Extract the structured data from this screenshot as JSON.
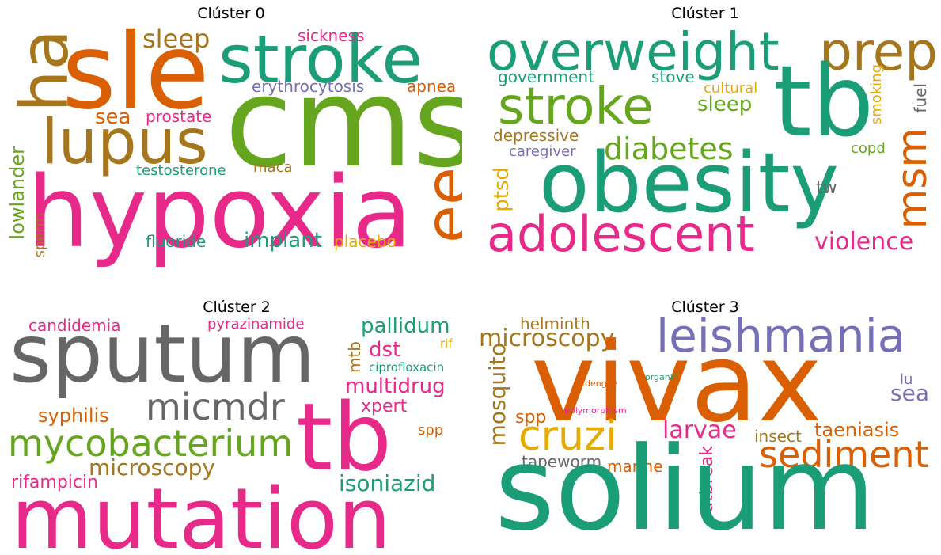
{
  "palette": {
    "green": "#1b9e77",
    "orange": "#d95f02",
    "purple": "#7570b3",
    "pink": "#e7298a",
    "lime": "#66a61e",
    "gold": "#e6ab02",
    "brown": "#a6761d",
    "gray": "#666666"
  },
  "clusters": [
    {
      "title": "Clúster 0",
      "words": {
        "sle": "sle",
        "ha": "ha",
        "stroke": "stroke",
        "sleep": "sleep",
        "sickness": "sickness",
        "cms": "cms",
        "erythrocytosis": "erythrocytosis",
        "apnea": "apnea",
        "lupus": "lupus",
        "sea": "sea",
        "prostate": "prostate",
        "hypoxia": "hypoxia",
        "ee": "ee",
        "testosterone": "testosterone",
        "maca": "maca",
        "lowlander": "lowlander",
        "sperm": "sperm",
        "fluoride": "fluoride",
        "implant": "implant",
        "placebo": "placebo"
      }
    },
    {
      "title": "Clúster 1",
      "words": {
        "overweight": "overweight",
        "prep": "prep",
        "government": "government",
        "stove": "stove",
        "cultural": "cultural",
        "smoking": "smoking",
        "fuel": "fuel",
        "stroke": "stroke",
        "sleep": "sleep",
        "tb": "tb",
        "depressive": "depressive",
        "diabetes": "diabetes",
        "caregiver": "caregiver",
        "copd": "copd",
        "ptsd": "ptsd",
        "obesity": "obesity",
        "msm": "msm",
        "tw": "tw",
        "adolescent": "adolescent",
        "violence": "violence"
      }
    },
    {
      "title": "Clúster 2",
      "words": {
        "candidemia": "candidemia",
        "pyrazinamide": "pyrazinamide",
        "pallidum": "pallidum",
        "sputum": "sputum",
        "mtb": "mtb",
        "dst": "dst",
        "rif": "rif",
        "ciprofloxacin": "ciprofloxacin",
        "multidrug": "multidrug",
        "micmdr": "micmdr",
        "xpert": "xpert",
        "syphilis": "syphilis",
        "tb": "tb",
        "spp": "spp",
        "mycobacterium": "mycobacterium",
        "microscopy": "microscopy",
        "rifampicin": "rifampicin",
        "isoniazid": "isoniazid",
        "mutation": "mutation"
      }
    },
    {
      "title": "Clúster 3",
      "words": {
        "helminth": "helminth",
        "leishmania": "leishmania",
        "microscopy": "microscopy",
        "vivax": "vivax",
        "mosquito": "mosquito",
        "dengue": "dengue",
        "organic": "organic",
        "lu": "lu",
        "sea": "sea",
        "spp": "spp",
        "polymorphism": "polymorphism",
        "cruzi": "cruzi",
        "larvae": "larvae",
        "taeniasis": "taeniasis",
        "insect": "insect",
        "sediment": "sediment",
        "tapeworm": "tapeworm",
        "marine": "marine",
        "outbreak": "outbreak",
        "solium": "solium"
      }
    }
  ]
}
